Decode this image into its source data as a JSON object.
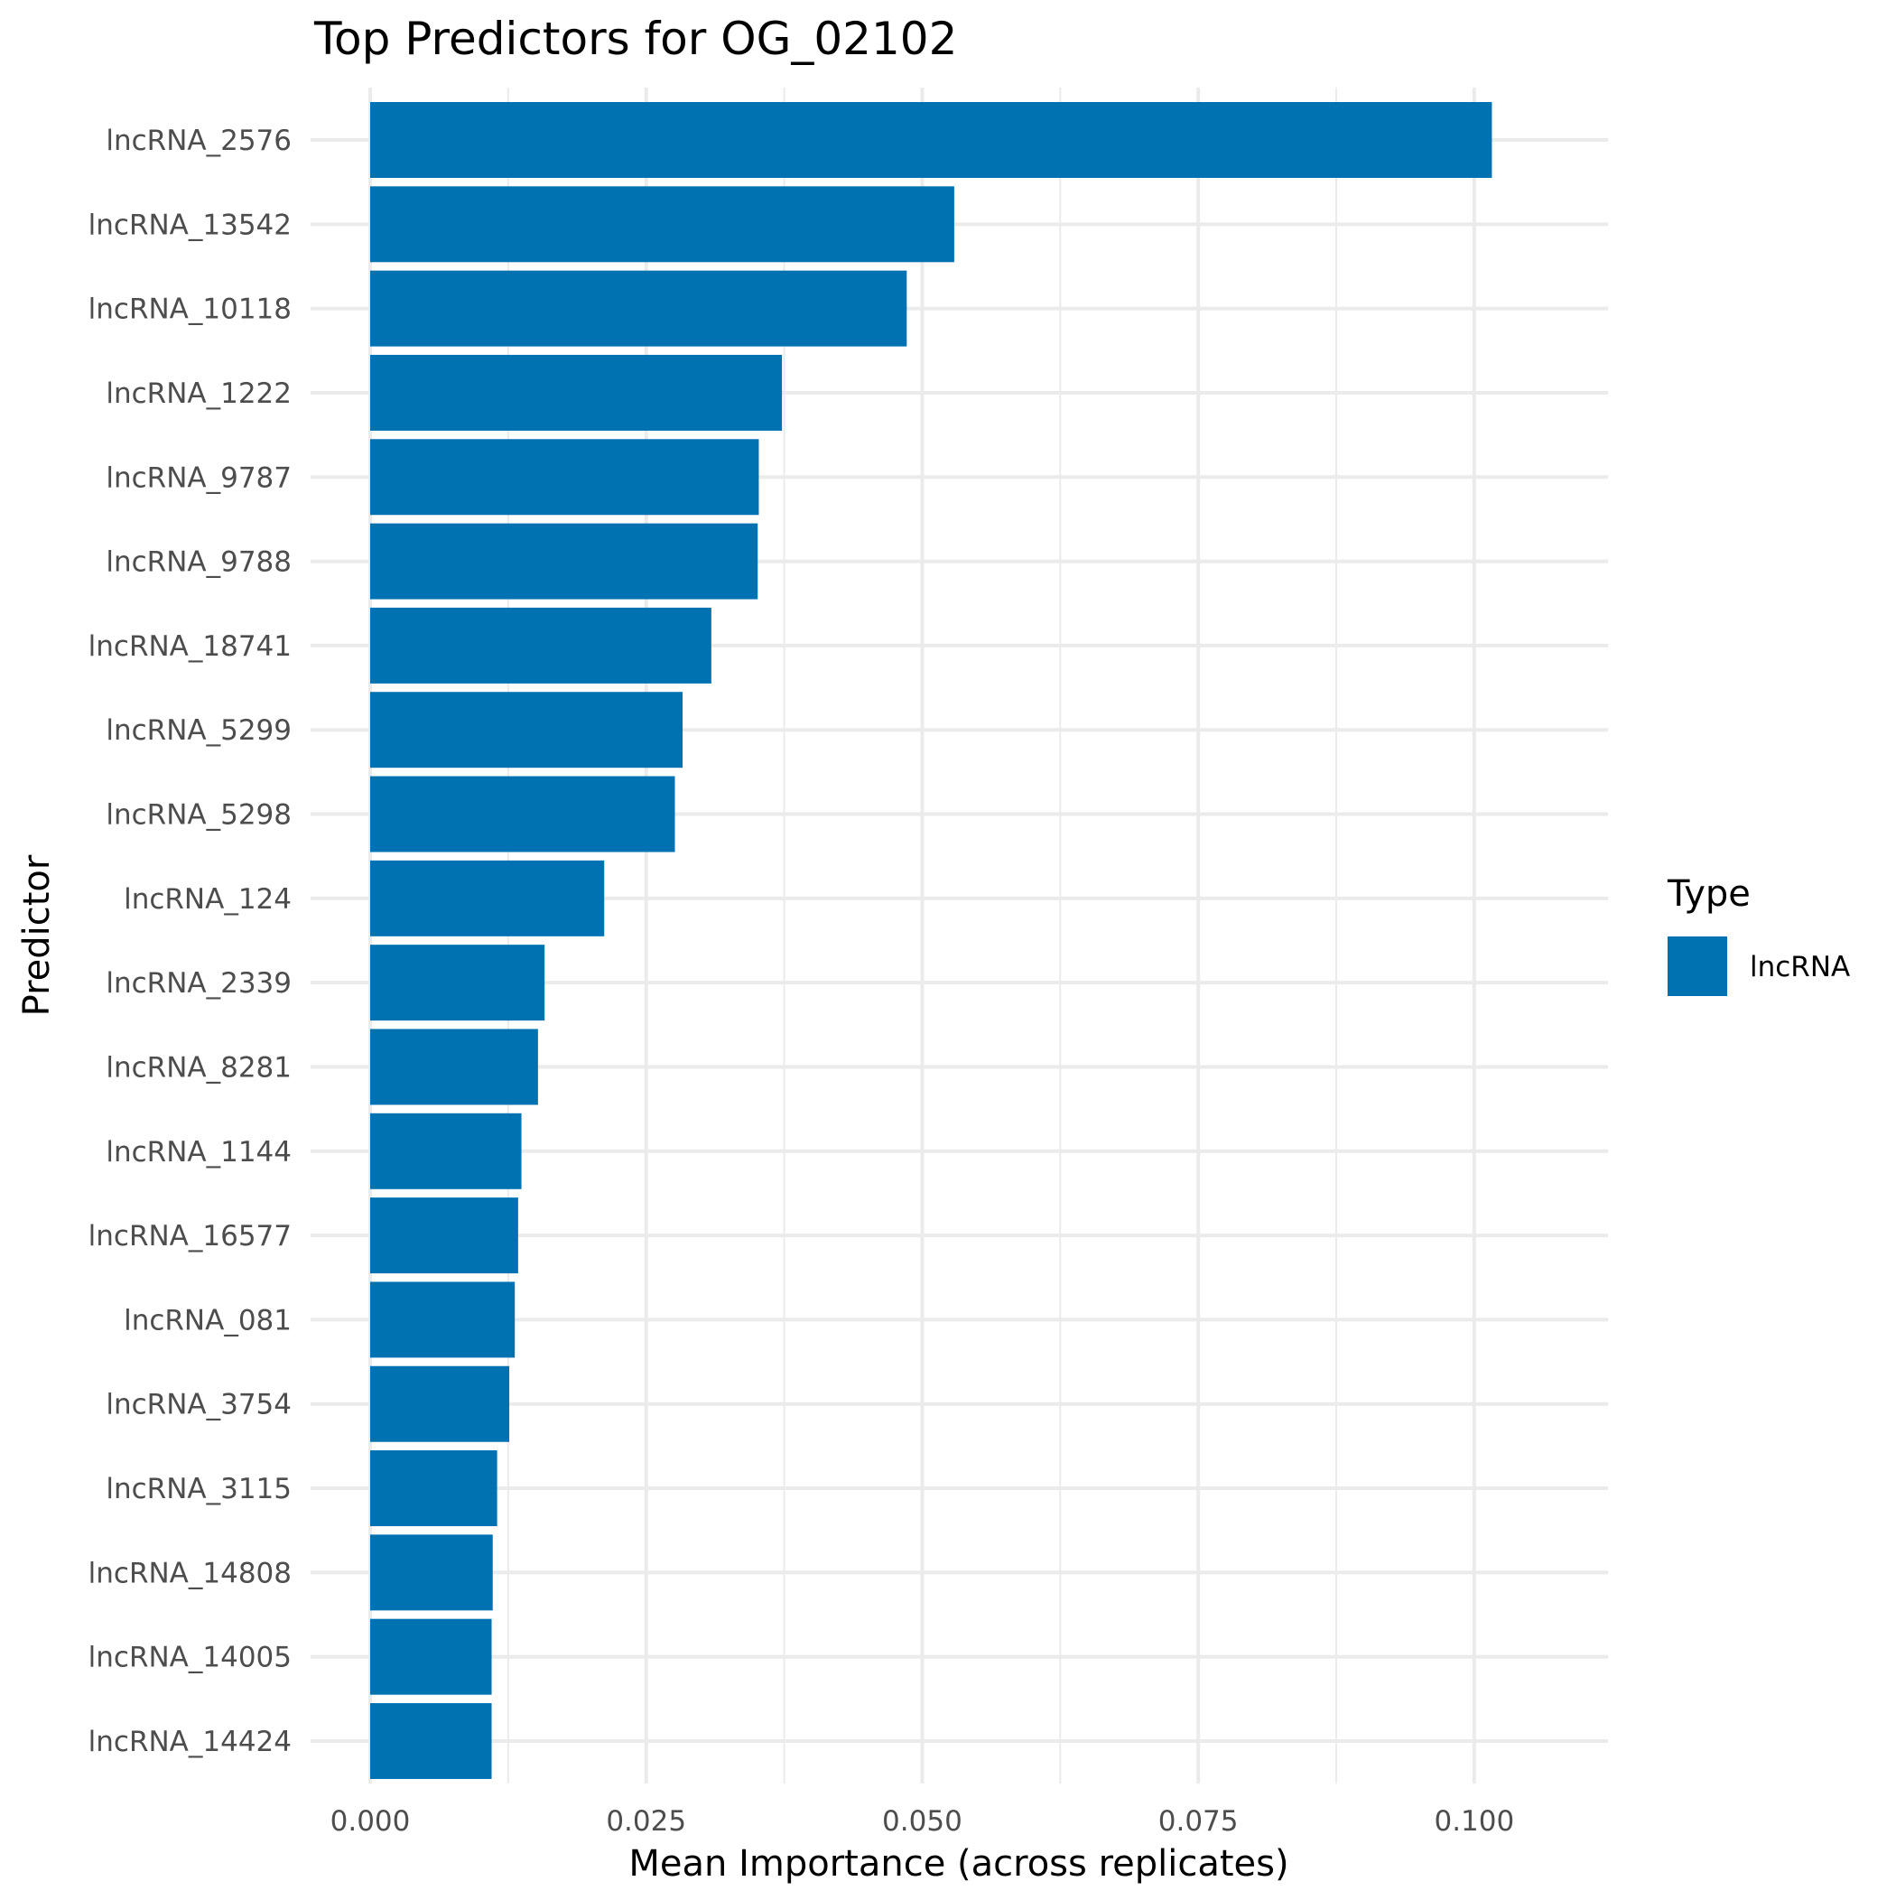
{
  "chart_data": {
    "type": "bar",
    "orientation": "horizontal",
    "title": "Top Predictors for OG_02102",
    "xlabel": "Mean Importance (across replicates)",
    "ylabel": "Predictor",
    "xlim": [
      0,
      0.1068
    ],
    "xticks": [
      0,
      0.025,
      0.05,
      0.075,
      0.1
    ],
    "xtick_labels": [
      "0.000",
      "0.025",
      "0.050",
      "0.075",
      "0.100"
    ],
    "grid": true,
    "categories": [
      "lncRNA_2576",
      "lncRNA_13542",
      "lncRNA_10118",
      "lncRNA_1222",
      "lncRNA_9787",
      "lncRNA_9788",
      "lncRNA_18741",
      "lncRNA_5299",
      "lncRNA_5298",
      "lncRNA_124",
      "lncRNA_2339",
      "lncRNA_8281",
      "lncRNA_1144",
      "lncRNA_16577",
      "lncRNA_081",
      "lncRNA_3754",
      "lncRNA_3115",
      "lncRNA_14808",
      "lncRNA_14005",
      "lncRNA_14424"
    ],
    "series": [
      {
        "name": "lncRNA",
        "color": "#0072B2",
        "values": [
          0.1016,
          0.0529,
          0.0486,
          0.0373,
          0.0352,
          0.0351,
          0.0309,
          0.0283,
          0.0276,
          0.0212,
          0.0158,
          0.0152,
          0.0137,
          0.0134,
          0.0131,
          0.0126,
          0.0115,
          0.0111,
          0.011,
          0.011
        ]
      }
    ],
    "legend": {
      "title": "Type",
      "position": "right",
      "entries": [
        {
          "label": "lncRNA",
          "color": "#0072B2"
        }
      ]
    }
  }
}
